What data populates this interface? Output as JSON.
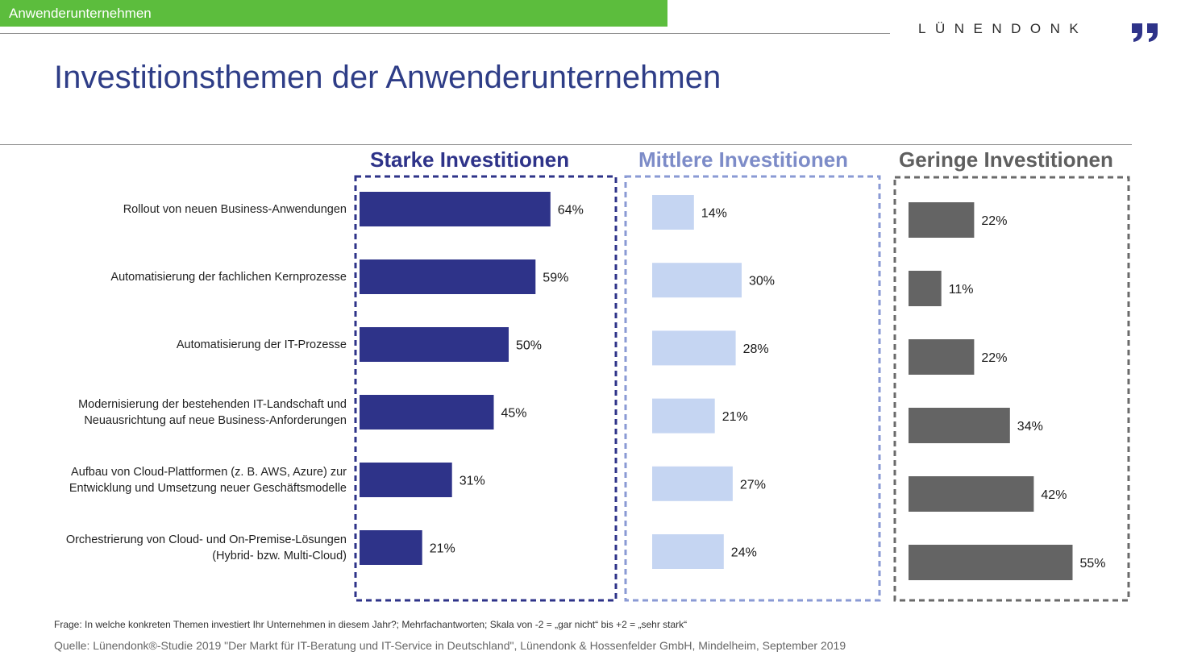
{
  "header": {
    "section_label": "Anwenderunternehmen",
    "logo_text": "LÜNENDONK"
  },
  "title": "Investitionsthemen der Anwenderunternehmen",
  "colors": {
    "header_green": "#5cbd3d",
    "title_blue": "#2e3d87",
    "strong": "#2e3389",
    "medium": "#c5d5f2",
    "low": "#646464"
  },
  "chart_data": {
    "type": "bar",
    "orientation": "horizontal",
    "categories": [
      "Rollout von neuen Business-Anwendungen",
      "Automatisierung der fachlichen Kernprozesse",
      "Automatisierung der IT-Prozesse",
      "Modernisierung der bestehenden IT-Landschaft und\nNeuausrichtung auf neue Business-Anforderungen",
      "Aufbau von Cloud-Plattformen (z. B. AWS, Azure) zur\nEntwicklung und Umsetzung neuer Geschäftsmodelle",
      "Orchestrierung von Cloud- und On-Premise-Lösungen\n(Hybrid- bzw. Multi-Cloud)"
    ],
    "unit": "%",
    "series": [
      {
        "name": "Starke Investitionen",
        "values": [
          64,
          59,
          50,
          45,
          31,
          21
        ],
        "color": "#2e3389",
        "title_color": "#2e3389"
      },
      {
        "name": "Mittlere Investitionen",
        "values": [
          14,
          30,
          28,
          21,
          27,
          24
        ],
        "color": "#c5d5f2",
        "title_color": "#7d8cc8"
      },
      {
        "name": "Geringe Investitionen",
        "values": [
          22,
          11,
          22,
          34,
          42,
          55
        ],
        "color": "#646464",
        "title_color": "#5f5f5f"
      }
    ]
  },
  "footnote": "Frage: In welche konkreten Themen investiert Ihr Unternehmen in diesem Jahr?; Mehrfachantworten; Skala von -2 = „gar nicht“ bis  +2 = „sehr stark“",
  "source": "Quelle: Lünendonk®-Studie 2019 \"Der Markt für IT-Beratung und IT-Service in Deutschland\", Lünendonk & Hossenfelder GmbH, Mindelheim, September 2019"
}
